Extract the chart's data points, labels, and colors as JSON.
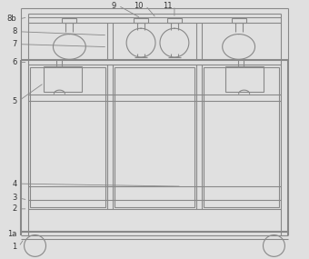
{
  "bg_color": "#e0e0e0",
  "line_color": "#888888",
  "lw": 0.8,
  "tlw": 1.5,
  "fig_width": 3.4,
  "fig_height": 2.85,
  "dpi": 100
}
